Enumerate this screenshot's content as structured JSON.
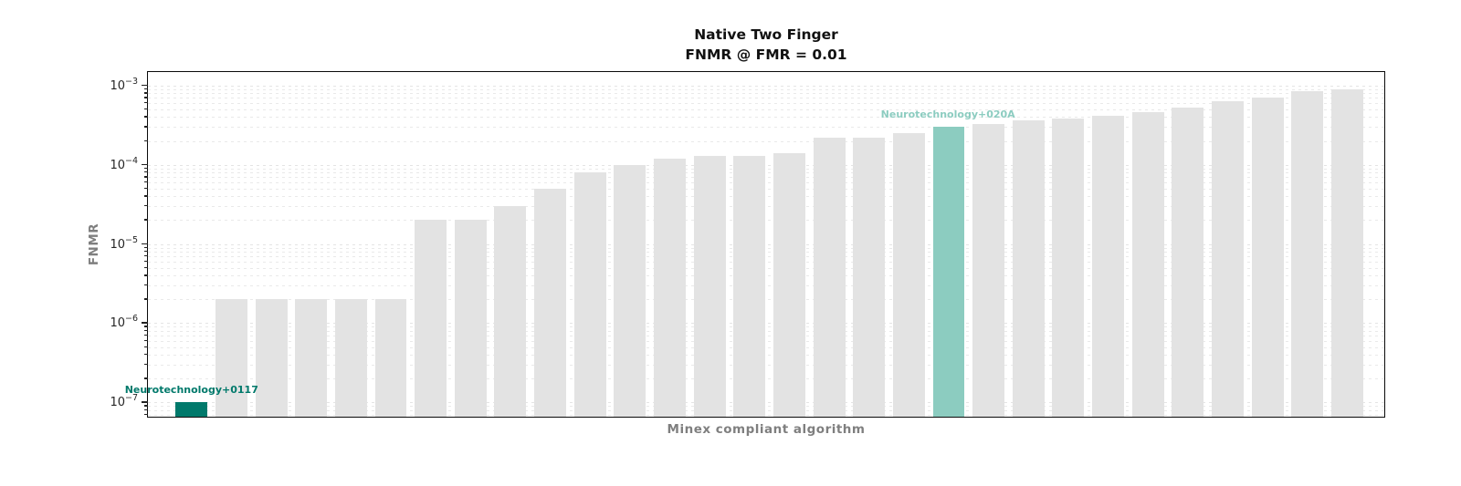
{
  "chart_data": {
    "type": "bar",
    "title": "Native Two Finger",
    "subtitle": "FNMR @ FMR = 0.01",
    "xlabel": "Minex compliant algorithm",
    "ylabel": "FNMR",
    "yscale": "log",
    "ylim": [
      6.6e-08,
      0.00148
    ],
    "ytick_exponents": [
      -3,
      -4,
      -5,
      -6,
      -7
    ],
    "grid": {
      "axis": "y",
      "style": "dashed",
      "minor_gridlines": true
    },
    "legend": "none",
    "x_tick_labels": "none",
    "values": [
      1e-07,
      2e-06,
      2e-06,
      2e-06,
      2e-06,
      2e-06,
      2e-05,
      2e-05,
      3e-05,
      5e-05,
      8e-05,
      0.0001,
      0.00012,
      0.00013,
      0.00013,
      0.00014,
      0.00022,
      0.00022,
      0.00025,
      0.0003,
      0.00033,
      0.00036,
      0.00038,
      0.00041,
      0.00046,
      0.00052,
      0.00063,
      0.0007,
      0.00085,
      0.0009
    ],
    "highlights": [
      {
        "index": 0,
        "label": "Neurotechnology+0117",
        "color": "#00796b"
      },
      {
        "index": 19,
        "label": "Neurotechnology+020A",
        "color": "#8cccc0"
      }
    ],
    "colors": {
      "default_bar": "#e3e3e3",
      "highlight_dark_teal": "#00796b",
      "highlight_light_teal": "#8cccc0",
      "gridline": "#e9e9e9",
      "spine": "#0a0a0a",
      "axis_label_gray": "#7f7f7f",
      "title_black": "#111111"
    }
  }
}
